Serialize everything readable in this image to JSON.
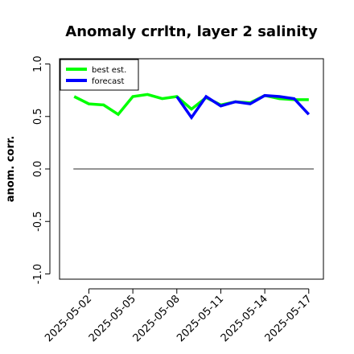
{
  "chart_data": {
    "type": "line",
    "title": "Anomaly crrltn, layer 2 salinity",
    "xlabel": "",
    "ylabel": "anom. corr.",
    "x": [
      "2025-05-01",
      "2025-05-02",
      "2025-05-03",
      "2025-05-04",
      "2025-05-05",
      "2025-05-06",
      "2025-05-07",
      "2025-05-08",
      "2025-05-09",
      "2025-05-10",
      "2025-05-11",
      "2025-05-12",
      "2025-05-13",
      "2025-05-14",
      "2025-05-15",
      "2025-05-16",
      "2025-05-17"
    ],
    "xticks": [
      "2025-05-02",
      "2025-05-05",
      "2025-05-08",
      "2025-05-11",
      "2025-05-14",
      "2025-05-17"
    ],
    "highlight_tick": "2025-05-08",
    "highlight_color": "#228b22",
    "yticks": [
      "-1.0",
      "-0.5",
      "0.0",
      "0.5",
      "1.0"
    ],
    "xlim": [
      "2025-04-30",
      "2025-05-18"
    ],
    "ylim": [
      -1.05,
      1.05
    ],
    "reference_line_y": 0,
    "legend_position": "top-left",
    "series": [
      {
        "name": "best est.",
        "color": "#00ff00",
        "values": [
          0.69,
          0.62,
          0.61,
          0.52,
          0.69,
          0.71,
          0.67,
          0.69,
          0.57,
          0.68,
          0.61,
          0.64,
          0.63,
          0.7,
          0.67,
          0.66,
          0.66
        ]
      },
      {
        "name": "forecast",
        "color": "#0000ff",
        "values": [
          null,
          null,
          null,
          null,
          null,
          null,
          null,
          0.69,
          0.49,
          0.69,
          0.6,
          0.64,
          0.62,
          0.7,
          0.69,
          0.67,
          0.52
        ]
      }
    ]
  }
}
